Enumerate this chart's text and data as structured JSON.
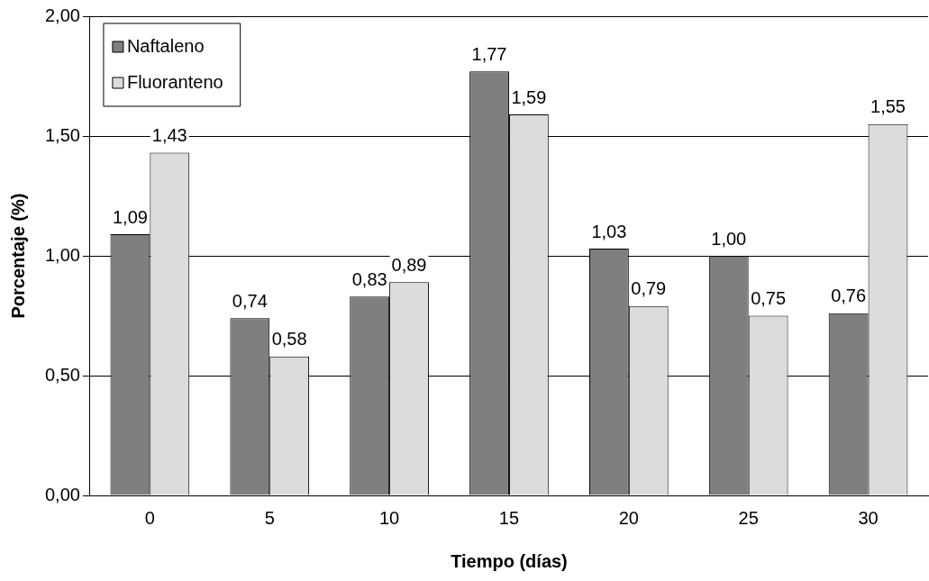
{
  "chart_data": {
    "type": "bar",
    "xlabel": "Tiempo (días)",
    "ylabel": "Porcentaje (%)",
    "categories": [
      "0",
      "5",
      "10",
      "15",
      "20",
      "25",
      "30"
    ],
    "series": [
      {
        "name": "Naftaleno",
        "color": "#7f7f7f",
        "values": [
          1.09,
          0.74,
          0.83,
          1.77,
          1.03,
          1.0,
          0.76
        ],
        "value_labels": [
          "1,09",
          "0,74",
          "0,83",
          "1,77",
          "1,03",
          "1,00",
          "0,76"
        ]
      },
      {
        "name": "Fluoranteno",
        "color": "#dcdcdc",
        "values": [
          1.43,
          0.58,
          0.89,
          1.59,
          0.79,
          0.75,
          1.55
        ],
        "value_labels": [
          "1,43",
          "0,58",
          "0,89",
          "1,59",
          "0,79",
          "0,75",
          "1,55"
        ]
      }
    ],
    "ylim": [
      0,
      2
    ],
    "yticks": [
      {
        "value": 0,
        "label": "0,00"
      },
      {
        "value": 0.5,
        "label": "0,50"
      },
      {
        "value": 1,
        "label": "1,00"
      },
      {
        "value": 1.5,
        "label": "1,50"
      },
      {
        "value": 2,
        "label": "2,00"
      }
    ],
    "grid": "y",
    "legend": "top left"
  }
}
